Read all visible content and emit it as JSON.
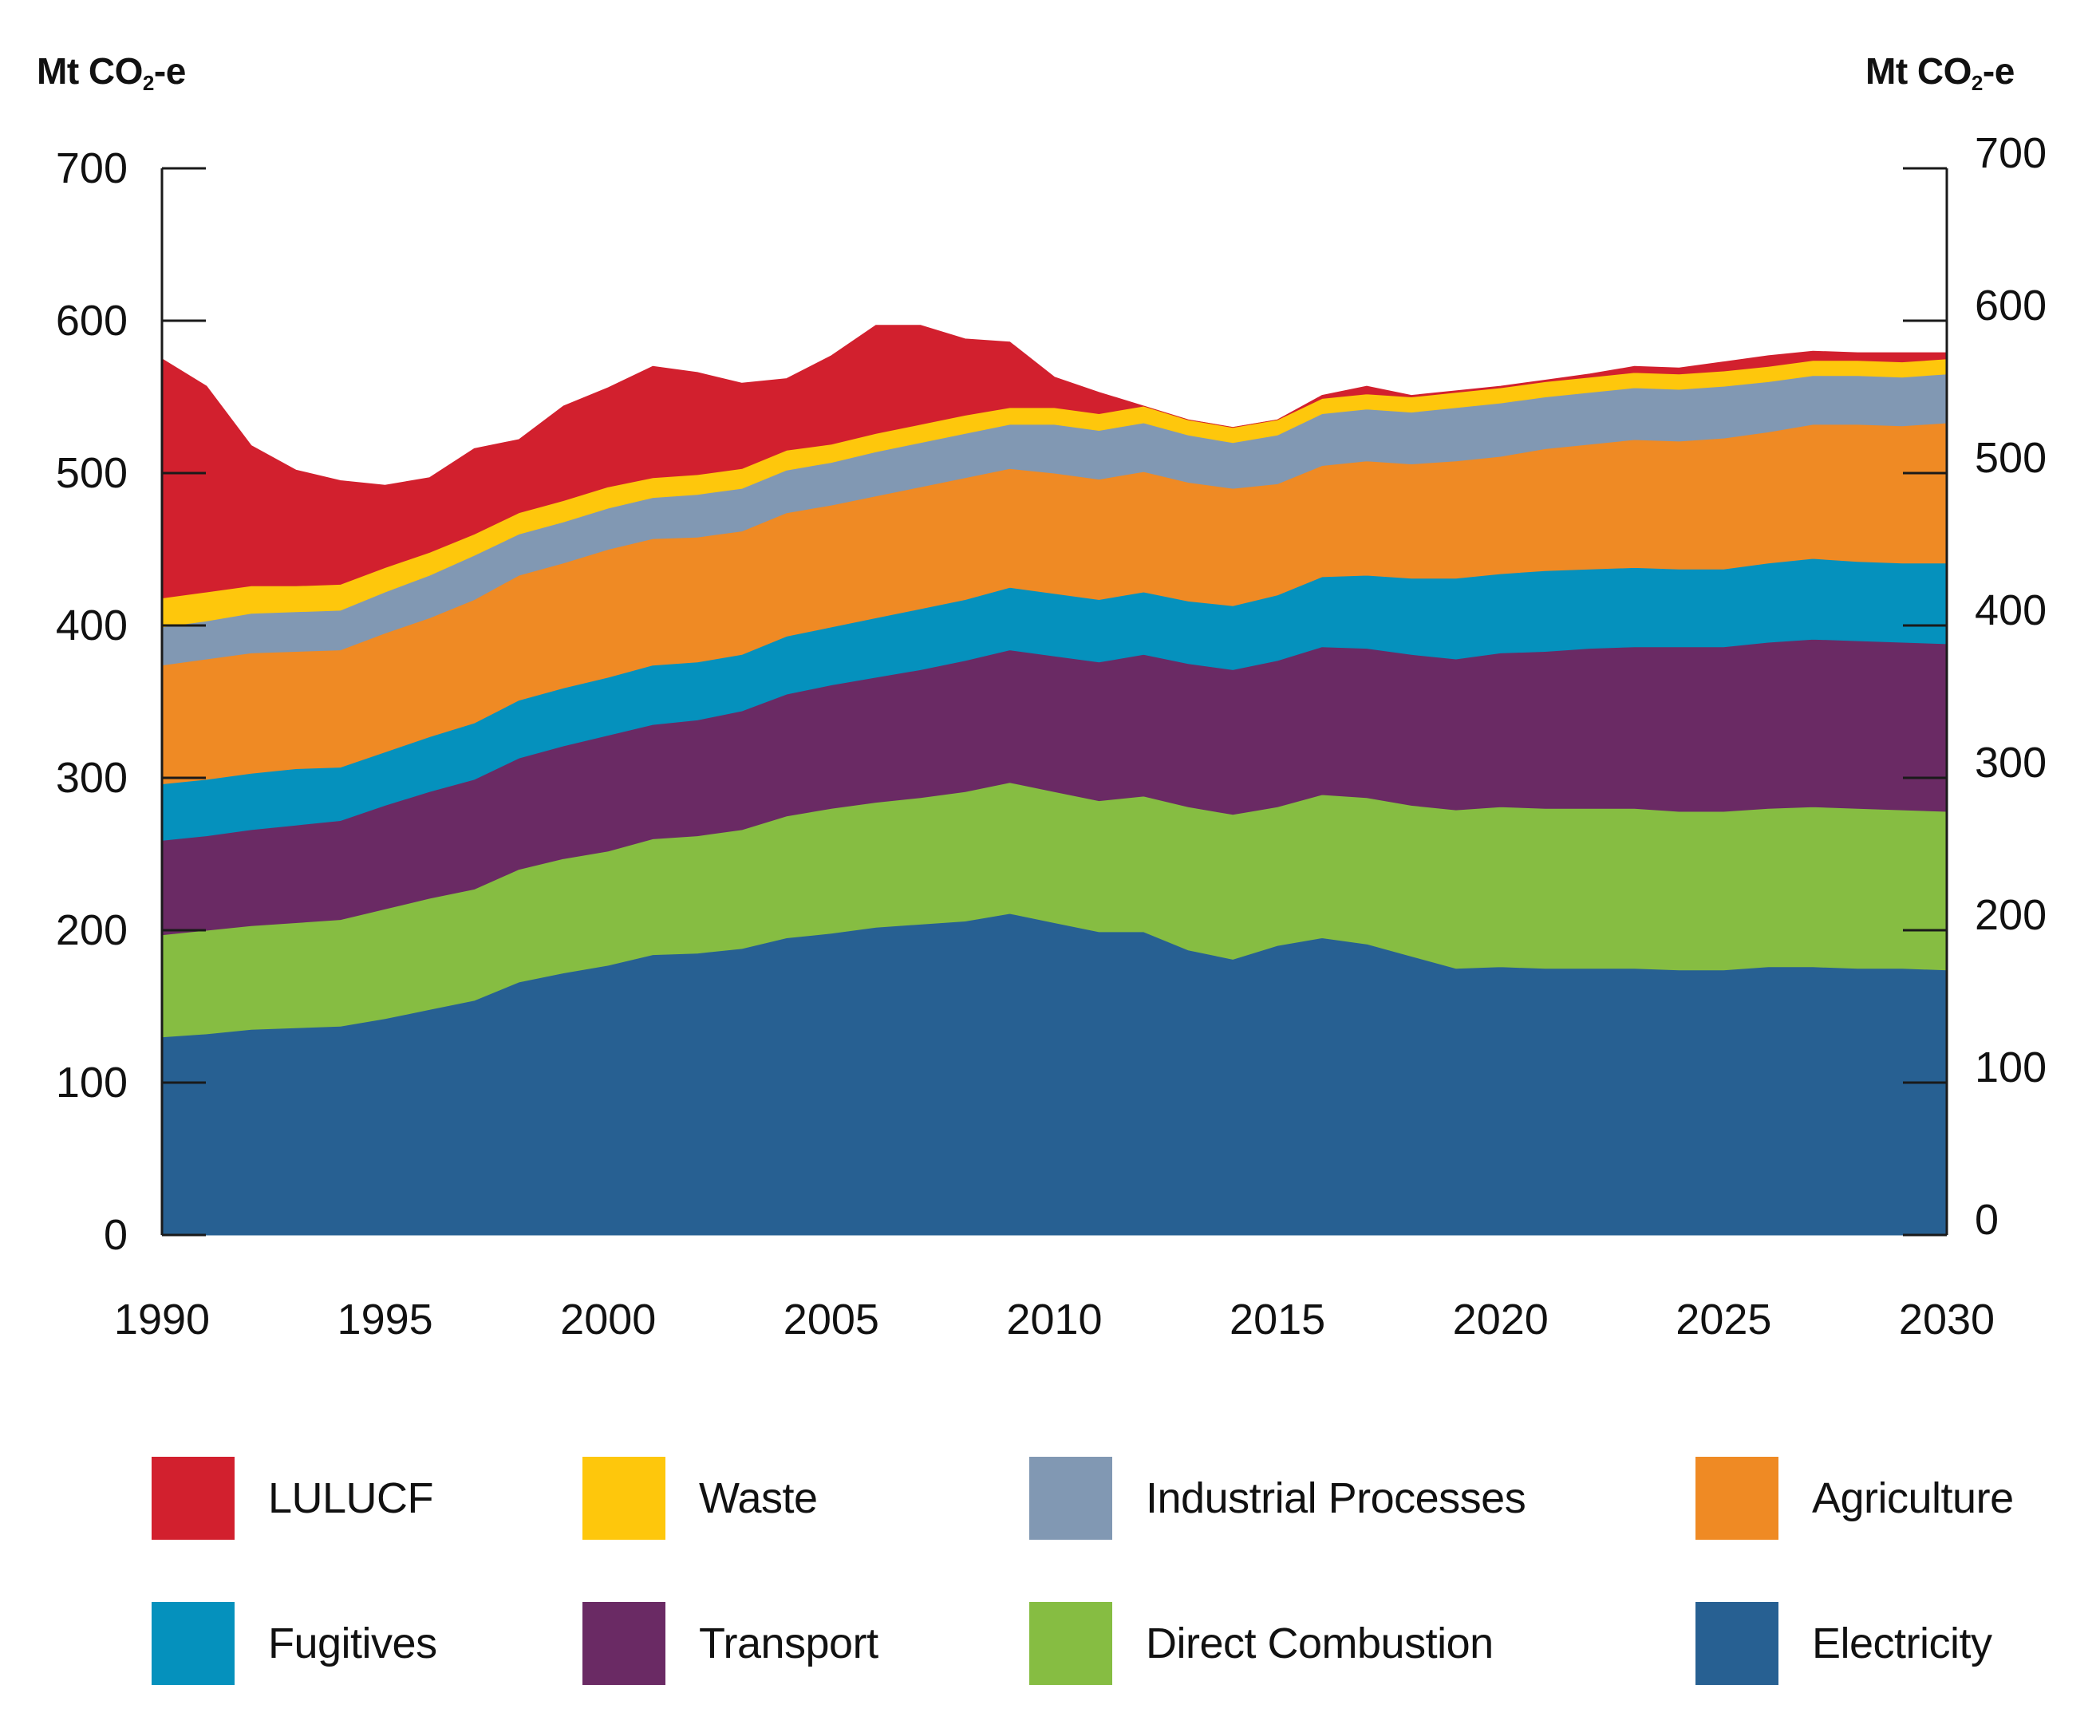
{
  "chart_data": {
    "type": "area",
    "stacked": true,
    "ylabel_left": "Mt CO2-e",
    "ylabel_right": "Mt CO2-e",
    "unit_parts": {
      "main": "Mt CO",
      "sub": "2",
      "suffix": "-e"
    },
    "xlim": [
      1990,
      2030
    ],
    "ylim": [
      0,
      700
    ],
    "x_ticks": [
      1990,
      1995,
      2000,
      2005,
      2010,
      2015,
      2020,
      2025,
      2030
    ],
    "y_ticks": [
      0,
      100,
      200,
      300,
      400,
      500,
      600,
      700
    ],
    "grid": false,
    "x": [
      1990,
      1991,
      1992,
      1993,
      1994,
      1995,
      1996,
      1997,
      1998,
      1999,
      2000,
      2001,
      2002,
      2003,
      2004,
      2005,
      2006,
      2007,
      2008,
      2009,
      2010,
      2011,
      2012,
      2013,
      2014,
      2015,
      2016,
      2017,
      2018,
      2019,
      2020,
      2021,
      2022,
      2023,
      2024,
      2025,
      2026,
      2027,
      2028,
      2029,
      2030
    ],
    "series": [
      {
        "name": "Electricity",
        "color": "#276092",
        "values": [
          130,
          132,
          135,
          136,
          137,
          142,
          148,
          154,
          166,
          172,
          177,
          184,
          185,
          188,
          195,
          198,
          202,
          204,
          206,
          211,
          205,
          199,
          199,
          187,
          181,
          190,
          195,
          191,
          183,
          175,
          176,
          175,
          175,
          175,
          174,
          174,
          176,
          176,
          175,
          175,
          174
        ]
      },
      {
        "name": "Direct Combustion",
        "color": "#86bd42",
        "values": [
          67,
          68,
          68,
          69,
          70,
          72,
          73,
          73,
          74,
          75,
          75,
          76,
          77,
          78,
          80,
          82,
          82,
          83,
          85,
          86,
          86,
          86,
          89,
          94,
          95,
          91,
          94,
          96,
          99,
          104,
          105,
          105,
          105,
          105,
          104,
          104,
          104,
          105,
          105,
          104,
          104
        ]
      },
      {
        "name": "Transport",
        "color": "#6a2a64",
        "values": [
          62,
          62,
          63,
          64,
          65,
          68,
          70,
          72,
          73,
          74,
          76,
          75,
          76,
          78,
          80,
          81,
          82,
          84,
          86,
          87,
          89,
          91,
          93,
          94,
          95,
          96,
          97,
          98,
          99,
          99,
          101,
          103,
          105,
          106,
          108,
          108,
          109,
          110,
          110,
          110,
          110
        ]
      },
      {
        "name": "Fugitives",
        "color": "#0591bd",
        "values": [
          37,
          37,
          37,
          37,
          35,
          35,
          36,
          37,
          38,
          38,
          38,
          39,
          38,
          37,
          38,
          38,
          39,
          40,
          40,
          41,
          41,
          41,
          41,
          41,
          42,
          43,
          46,
          48,
          50,
          53,
          52,
          53,
          52,
          52,
          51,
          51,
          52,
          53,
          52,
          52,
          53
        ]
      },
      {
        "name": "Agriculture",
        "color": "#ef8a24",
        "values": [
          78,
          79,
          79,
          77,
          77,
          78,
          78,
          81,
          82,
          82,
          84,
          83,
          82,
          81,
          81,
          80,
          80,
          80,
          80,
          78,
          79,
          79,
          79,
          78,
          77,
          73,
          73,
          75,
          75,
          77,
          77,
          80,
          82,
          84,
          84,
          86,
          86,
          88,
          90,
          90,
          92
        ]
      },
      {
        "name": "Industrial Processes",
        "color": "#8198b3",
        "values": [
          25,
          25,
          26,
          26,
          26,
          27,
          28,
          29,
          27,
          27,
          27,
          27,
          28,
          28,
          28,
          28,
          29,
          29,
          29,
          29,
          32,
          32,
          32,
          31,
          30,
          32,
          34,
          34,
          34,
          35,
          35,
          34,
          34,
          34,
          34,
          34,
          33,
          32,
          32,
          32,
          32
        ]
      },
      {
        "name": "Waste",
        "color": "#fec70c",
        "values": [
          19,
          19,
          18,
          17,
          17,
          16,
          15,
          14,
          14,
          14,
          14,
          13,
          13,
          13,
          13,
          12,
          12,
          12,
          12,
          11,
          11,
          11,
          11,
          10,
          10,
          10,
          10,
          10,
          10,
          10,
          10,
          10,
          10,
          10,
          10,
          10,
          10,
          10,
          10,
          10,
          10
        ]
      },
      {
        "name": "LULUCF",
        "color": "#d2202e",
        "values": [
          157,
          135,
          92,
          76,
          68,
          54,
          49,
          56,
          48,
          62,
          65,
          73,
          67,
          56,
          47,
          58,
          71,
          65,
          50,
          43,
          20,
          14,
          0,
          0,
          0,
          0,
          2,
          5,
          1,
          1,
          1,
          1,
          2,
          4,
          4,
          6,
          7,
          6,
          5,
          6,
          4
        ]
      }
    ],
    "legend": [
      [
        "LULUCF",
        "Waste",
        "Industrial Processes",
        "Agriculture"
      ],
      [
        "Fugitives",
        "Transport",
        "Direct Combustion",
        "Electricity"
      ]
    ]
  }
}
